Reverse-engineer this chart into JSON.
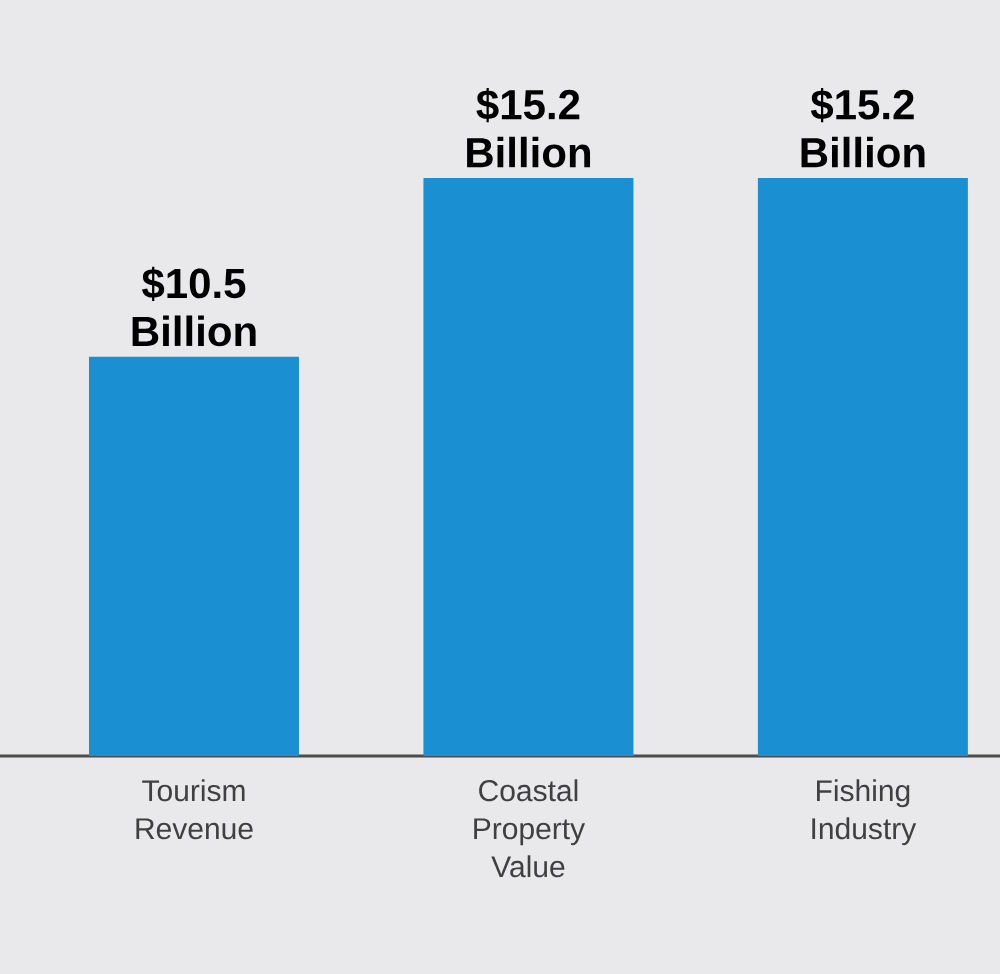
{
  "chart_data": {
    "type": "bar",
    "categories": [
      "Tourism Revenue",
      "Coastal Property Value",
      "Fishing Industry"
    ],
    "values": [
      10.5,
      15.2,
      15.2
    ],
    "value_labels": [
      "$10.5 Billion",
      "$15.2 Billion",
      "$15.2 Billion"
    ],
    "color": "#1a8fd2"
  }
}
